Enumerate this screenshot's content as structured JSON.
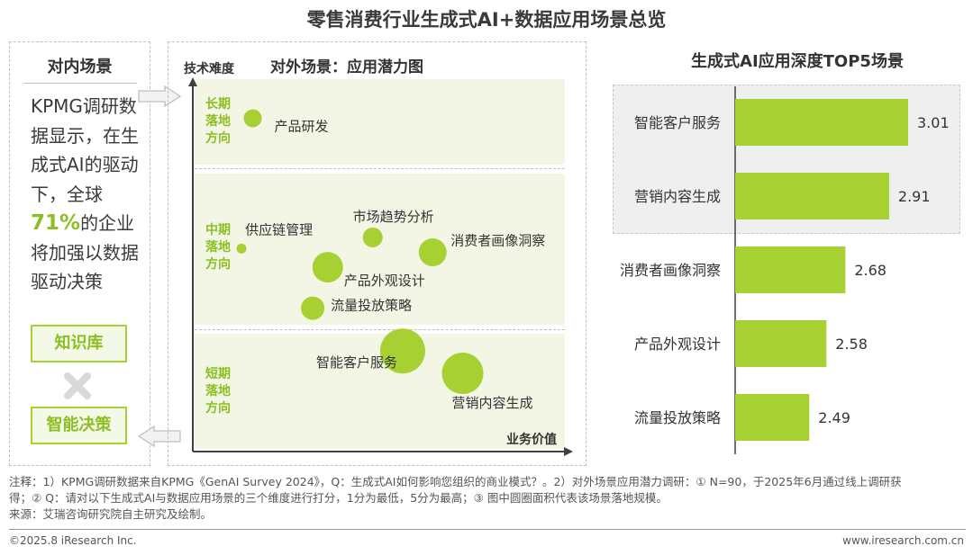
{
  "title": "零售消费行业生成式AI+数据应用场景总览",
  "left_panel": {
    "title": "对内场景",
    "text_before": "KPMG调研数据显示，在生成式AI的驱动下，全球",
    "highlight": "71%",
    "text_after": "的企业将加强以数据驱动决策",
    "tag_knowledge": "知识库",
    "tag_decision": "智能决策"
  },
  "icons": {
    "cross": "cross-icon",
    "arrow_right": "arrow-right-icon",
    "arrow_left": "arrow-left-icon"
  },
  "colors": {
    "accent": "#8cbf24",
    "bubble": "#a7d133",
    "band": "#f3f6e4",
    "bar": "#a7d133"
  },
  "chart_data": [
    {
      "type": "scatter",
      "title": "对外场景：应用潜力图",
      "xlabel": "业务价值",
      "ylabel": "技术难度",
      "bands": [
        {
          "label": "长期落地方向"
        },
        {
          "label": "中期落地方向"
        },
        {
          "label": "短期落地方向"
        }
      ],
      "points": [
        {
          "name": "产品研发",
          "x": 1.6,
          "y": 8.95,
          "size": 1.0
        },
        {
          "name": "供应链管理",
          "x": 1.3,
          "y": 5.45,
          "size": 0.55
        },
        {
          "name": "市场趋势分析",
          "x": 4.8,
          "y": 5.75,
          "size": 1.1
        },
        {
          "name": "消费者画像洞察",
          "x": 6.4,
          "y": 5.35,
          "size": 1.55
        },
        {
          "name": "产品外观设计",
          "x": 3.6,
          "y": 4.95,
          "size": 1.7
        },
        {
          "name": "流量投放策略",
          "x": 3.2,
          "y": 3.85,
          "size": 1.3
        },
        {
          "name": "智能客户服务",
          "x": 5.6,
          "y": 2.7,
          "size": 2.5
        },
        {
          "name": "营销内容生成",
          "x": 7.2,
          "y": 2.1,
          "size": 2.3
        }
      ]
    },
    {
      "type": "bar",
      "orientation": "horizontal",
      "title": "生成式AI应用深度TOP5场景",
      "categories": [
        "智能客户服务",
        "营销内容生成",
        "消费者画像洞察",
        "产品外观设计",
        "流量投放策略"
      ],
      "values": [
        3.01,
        2.91,
        2.68,
        2.58,
        2.49
      ],
      "value_labels": [
        "3.01",
        "2.91",
        "2.68",
        "2.58",
        "2.49"
      ],
      "xlim": [
        2.1,
        3.01
      ],
      "highlighted_top": 2
    }
  ],
  "footer": {
    "note_line1": "注释：1）KPMG调研数据来自KPMG《GenAI Survey 2024》，Q：生成式AI如何影响您组织的商业模式？。2）对外场景应用潜力调研：① N=90，于2025年6月通过线上调研获",
    "note_line2": "得；② Q：请对以下生成式AI与数据应用场景的三个维度进行打分，1分为最低，5分为最高；③ 图中圆圈面积代表该场景落地规模。",
    "source": "来源：艾瑞咨询研究院自主研究及绘制。",
    "copyright": "©2025.8 iResearch Inc.",
    "website": "www.iresearch.com.cn"
  }
}
